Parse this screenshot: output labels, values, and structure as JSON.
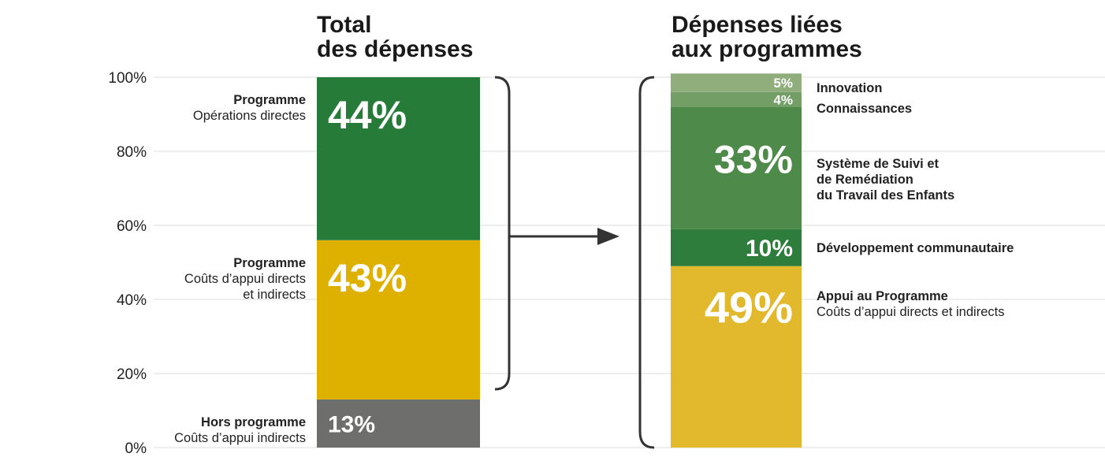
{
  "chart_data": [
    {
      "type": "bar",
      "title": "Total\ndes dépenses",
      "ylim": [
        0,
        100
      ],
      "yticks": [
        "0%",
        "20%",
        "40%",
        "60%",
        "80%",
        "100%"
      ],
      "grid": true,
      "segments": [
        {
          "label_bold": "Hors programme",
          "label_regular": "Coûts d’appui indirects",
          "value": 13,
          "display": "13%",
          "color": "#6e6e6c"
        },
        {
          "label_bold": "Programme",
          "label_regular": "Coûts d’appui directs\net indirects",
          "value": 43,
          "display": "43%",
          "color": "#deb100"
        },
        {
          "label_bold": "Programme",
          "label_regular": "Opérations directes",
          "value": 44,
          "display": "44%",
          "color": "#267b39"
        }
      ]
    },
    {
      "type": "bar",
      "title": "Dépenses liées\naux programmes",
      "ylim": [
        0,
        100
      ],
      "segments": [
        {
          "label_bold": "Appui au Programme",
          "label_regular": "Coûts d’appui directs et indirects",
          "value": 49,
          "display": "49%",
          "color": "#e2b82c"
        },
        {
          "label_bold": "Développement communautaire",
          "label_regular": "",
          "value": 10,
          "display": "10%",
          "color": "#2f7d3d"
        },
        {
          "label_bold": "Système de Suivi et\nde Remédiation\ndu Travail des Enfants",
          "label_regular": "",
          "value": 33,
          "display": "33%",
          "color": "#4e8a49"
        },
        {
          "label_bold": "Connaissances",
          "label_regular": "",
          "value": 4,
          "display": "4%",
          "color": "#739e65"
        },
        {
          "label_bold": "Innovation",
          "label_regular": "",
          "value": 5,
          "display": "5%",
          "color": "#90ad7c"
        }
      ]
    }
  ]
}
